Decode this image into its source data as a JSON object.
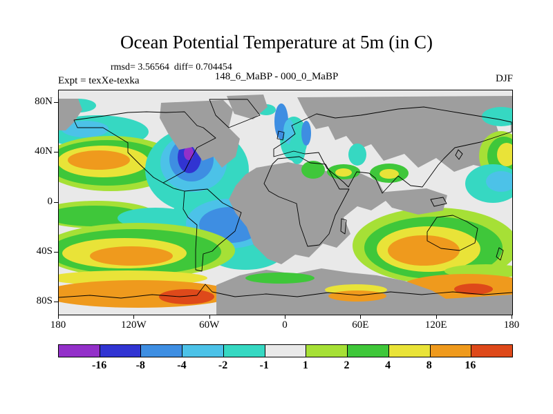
{
  "title": "Ocean Potential Temperature at 5m (in C)",
  "stats_line": "rmsd= 3.56564  diff= 0.704454",
  "header": {
    "experiment": "Expt = texXe-texka",
    "comparison": "148_6_MaBP - 000_0_MaBP",
    "season": "DJF"
  },
  "axes": {
    "lat_ticks": [
      {
        "label": "80N",
        "value": 80
      },
      {
        "label": "40N",
        "value": 40
      },
      {
        "label": "0",
        "value": 0
      },
      {
        "label": "40S",
        "value": -40
      },
      {
        "label": "80S",
        "value": -80
      }
    ],
    "lon_ticks": [
      {
        "label": "180",
        "value": -180
      },
      {
        "label": "120W",
        "value": -120
      },
      {
        "label": "60W",
        "value": -60
      },
      {
        "label": "0",
        "value": 0
      },
      {
        "label": "60E",
        "value": 60
      },
      {
        "label": "120E",
        "value": 120
      },
      {
        "label": "180",
        "value": 180
      }
    ]
  },
  "chart_data": {
    "type": "heatmap",
    "title": "Ocean Potential Temperature at 5m (in C)",
    "comparison": "148_6_MaBP - 000_0_MaBP",
    "experiment": "texXe-texka",
    "season": "DJF",
    "units": "C",
    "statistics": {
      "rmsd": 3.56564,
      "diff": 0.704454
    },
    "lon_range": [
      -180,
      180
    ],
    "lat_range": [
      -90,
      90
    ],
    "colorbar": {
      "boundary_labels": [
        "-16",
        "-8",
        "-4",
        "-2",
        "-1",
        "1",
        "2",
        "4",
        "8",
        "16"
      ],
      "segment_colors": [
        "#9330c9",
        "#3134d2",
        "#3e8ee2",
        "#4cc2e8",
        "#36d8c2",
        "#e9e9e9",
        "#a6e036",
        "#3fc73a",
        "#e9e338",
        "#ef9a1d",
        "#de491a"
      ]
    },
    "land_color": "#9e9e9e",
    "coastline_color": "#000000",
    "notable_anomalies": [
      {
        "region": "western North Atlantic near 60W 30N",
        "value": "strong cooling, -8 to below -16 C core"
      },
      {
        "region": "central North Pacific near 40N",
        "value": "warming, 4 to 16 C core"
      },
      {
        "region": "tropical and South Atlantic",
        "value": "cooling, -1 to -4 C"
      },
      {
        "region": "southern Indian Ocean near 40S",
        "value": "warming, 8 to 16 C"
      },
      {
        "region": "Southern Ocean circumpolar band near 60S",
        "value": "warming, 4 to 16 C with red >16 C patches"
      },
      {
        "region": "North Atlantic subpolar straits",
        "value": "cooling, -2 to -8 C"
      },
      {
        "region": "Tethys margin seas",
        "value": "warming, 1 to 4 C"
      },
      {
        "region": "paleo continents (148.6 Ma land mask)",
        "value": "gray, no data"
      }
    ]
  },
  "palette": {
    "purple": "#9330c9",
    "indigo": "#3134d2",
    "blue": "#3e8ee2",
    "lightblue": "#4cc2e8",
    "cyan": "#36d8c2",
    "neutral": "#e9e9e9",
    "lightgreen": "#a6e036",
    "green": "#3fc73a",
    "yellow": "#e9e338",
    "orange": "#ef9a1d",
    "red": "#de491a",
    "land": "#9e9e9e",
    "coast": "#000000"
  }
}
